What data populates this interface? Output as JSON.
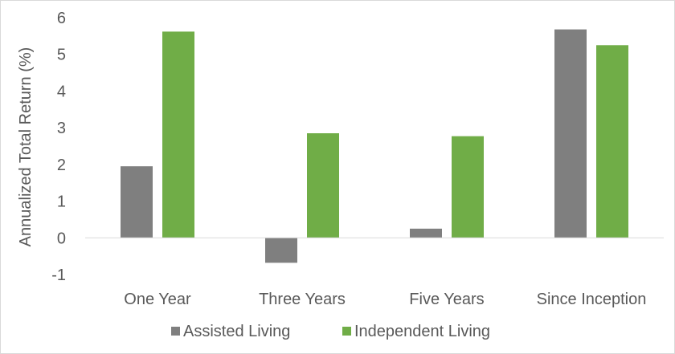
{
  "chart_data": {
    "type": "bar",
    "title": "",
    "xlabel": "",
    "ylabel": "Annualized Total Return (%)",
    "categories": [
      "One Year",
      "Three Years",
      "Five Years",
      "Since Inception"
    ],
    "series": [
      {
        "name": "Assisted Living",
        "color": "#7f7f7f",
        "values": [
          1.95,
          -0.68,
          0.25,
          5.68
        ]
      },
      {
        "name": "Independent Living",
        "color": "#70ad47",
        "values": [
          5.62,
          2.85,
          2.77,
          5.25
        ]
      }
    ],
    "ylim": [
      -1,
      6
    ],
    "yticks": [
      "-1",
      "0",
      "1",
      "2",
      "3",
      "4",
      "5",
      "6"
    ],
    "grid": false,
    "legend_position": "bottom"
  }
}
